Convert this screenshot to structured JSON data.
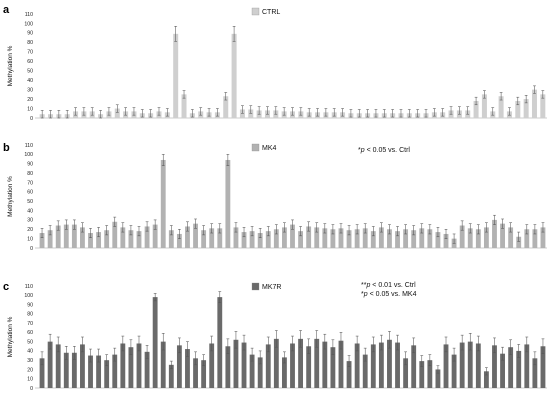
{
  "chart_data": [
    {
      "panel": "a",
      "type": "bar",
      "legend": "CTRL",
      "ylabel": "Methylation %",
      "ylim": [
        0,
        110
      ],
      "yticks": [
        0,
        10,
        20,
        30,
        40,
        50,
        60,
        70,
        80,
        90,
        100,
        110
      ],
      "color": "#cfcfcf",
      "annotations": [],
      "values": [
        4,
        4,
        4,
        4,
        7,
        7,
        7,
        4,
        7,
        10,
        7,
        7,
        5,
        5,
        7,
        6,
        89,
        25,
        5,
        7,
        6,
        6,
        23,
        89,
        9,
        9,
        8,
        8,
        8,
        7,
        7,
        7,
        6,
        6,
        6,
        6,
        6,
        5,
        5,
        5,
        5,
        5,
        5,
        5,
        5,
        5,
        5,
        6,
        6,
        8,
        8,
        8,
        18,
        25,
        7,
        23,
        7,
        18,
        20,
        30,
        25
      ],
      "errors": [
        4,
        4,
        4,
        4,
        4,
        4,
        4,
        4,
        4,
        4,
        4,
        4,
        4,
        4,
        4,
        4,
        8,
        4,
        4,
        4,
        4,
        4,
        4,
        8,
        4,
        4,
        4,
        4,
        4,
        4,
        4,
        4,
        4,
        4,
        4,
        4,
        4,
        4,
        4,
        4,
        4,
        4,
        4,
        4,
        4,
        4,
        4,
        4,
        4,
        4,
        4,
        4,
        4,
        4,
        4,
        4,
        4,
        4,
        4,
        4,
        4
      ]
    },
    {
      "panel": "b",
      "type": "bar",
      "legend": "MK4",
      "ylabel": "Methylation %",
      "ylim": [
        0,
        110
      ],
      "yticks": [
        0,
        10,
        20,
        30,
        40,
        50,
        60,
        70,
        80,
        90,
        100,
        110
      ],
      "color": "#b2b2b2",
      "annotations": [
        {
          "prefix": "*",
          "p": "p",
          "text": " < 0.05 vs. Ctrl"
        }
      ],
      "values": [
        16,
        19,
        24,
        25,
        25,
        22,
        16,
        17,
        19,
        28,
        22,
        19,
        18,
        23,
        25,
        94,
        19,
        15,
        23,
        26,
        19,
        21,
        21,
        94,
        22,
        17,
        18,
        16,
        18,
        20,
        22,
        25,
        18,
        23,
        22,
        21,
        20,
        21,
        19,
        20,
        21,
        18,
        22,
        20,
        18,
        20,
        19,
        21,
        20,
        17,
        15,
        10,
        24,
        21,
        20,
        22,
        30,
        26,
        22,
        12,
        20,
        20,
        22
      ],
      "errors": [
        5,
        5,
        5,
        5,
        5,
        5,
        5,
        5,
        5,
        5,
        5,
        5,
        5,
        5,
        5,
        6,
        5,
        5,
        5,
        5,
        5,
        5,
        5,
        6,
        5,
        5,
        5,
        5,
        5,
        5,
        5,
        5,
        5,
        5,
        5,
        5,
        5,
        5,
        5,
        5,
        5,
        5,
        5,
        5,
        5,
        5,
        5,
        5,
        5,
        5,
        5,
        5,
        5,
        5,
        5,
        5,
        5,
        5,
        5,
        5,
        5,
        5,
        5
      ]
    },
    {
      "panel": "c",
      "type": "bar",
      "legend": "MK7R",
      "ylabel": "Methylation %",
      "ylim": [
        0,
        110
      ],
      "yticks": [
        0,
        10,
        20,
        30,
        40,
        50,
        60,
        70,
        80,
        90,
        100,
        110
      ],
      "color": "#6a6a6a",
      "annotations": [
        {
          "prefix": "**",
          "p": "p",
          "text": " < 0.01 vs. Ctrl"
        },
        {
          "prefix": "*",
          "p": "p",
          "text": " < 0.05 vs. MK4"
        }
      ],
      "values": [
        32,
        50,
        47,
        38,
        38,
        47,
        35,
        35,
        30,
        36,
        48,
        44,
        48,
        39,
        98,
        50,
        25,
        46,
        42,
        32,
        30,
        48,
        98,
        45,
        52,
        49,
        36,
        33,
        47,
        53,
        33,
        48,
        53,
        45,
        53,
        50,
        44,
        51,
        29,
        48,
        36,
        47,
        49,
        52,
        49,
        32,
        46,
        29,
        30,
        20,
        47,
        36,
        49,
        50,
        48,
        18,
        46,
        37,
        44,
        40,
        47,
        32,
        45
      ],
      "errors": [
        7,
        8,
        8,
        7,
        7,
        8,
        7,
        7,
        6,
        7,
        8,
        8,
        8,
        7,
        4,
        9,
        4,
        8,
        8,
        7,
        6,
        8,
        6,
        8,
        9,
        8,
        7,
        7,
        8,
        9,
        6,
        8,
        9,
        8,
        9,
        8,
        8,
        9,
        6,
        8,
        7,
        8,
        8,
        9,
        8,
        7,
        8,
        6,
        6,
        4,
        8,
        7,
        8,
        9,
        8,
        4,
        8,
        7,
        8,
        7,
        8,
        7,
        8
      ]
    }
  ]
}
